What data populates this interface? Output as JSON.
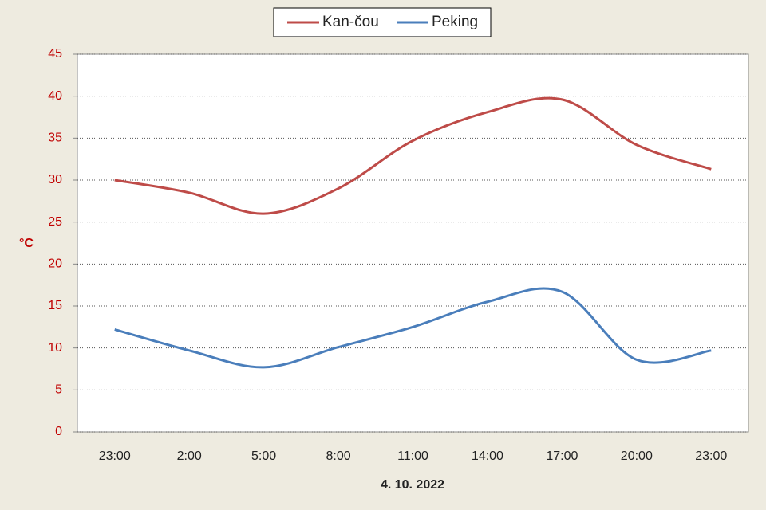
{
  "chart_data": {
    "type": "line",
    "categories": [
      "23:00",
      "2:00",
      "5:00",
      "8:00",
      "11:00",
      "14:00",
      "17:00",
      "20:00",
      "23:00"
    ],
    "series": [
      {
        "name": "Kan-čou",
        "color": "#be4b48",
        "values": [
          30,
          28.5,
          26,
          29,
          34.7,
          38.1,
          39.6,
          34.2,
          31.3
        ]
      },
      {
        "name": "Peking",
        "color": "#4a7ebb",
        "values": [
          12.2,
          9.7,
          7.7,
          10.1,
          12.5,
          15.5,
          16.7,
          8.6,
          9.7
        ]
      }
    ],
    "y_label": "°C",
    "x_label": "4. 10. 2022",
    "ylim": [
      0,
      45
    ],
    "yticks": [
      0,
      5,
      10,
      15,
      20,
      25,
      30,
      35,
      40,
      45
    ],
    "grid": true,
    "smooth": true,
    "legend": "top"
  }
}
